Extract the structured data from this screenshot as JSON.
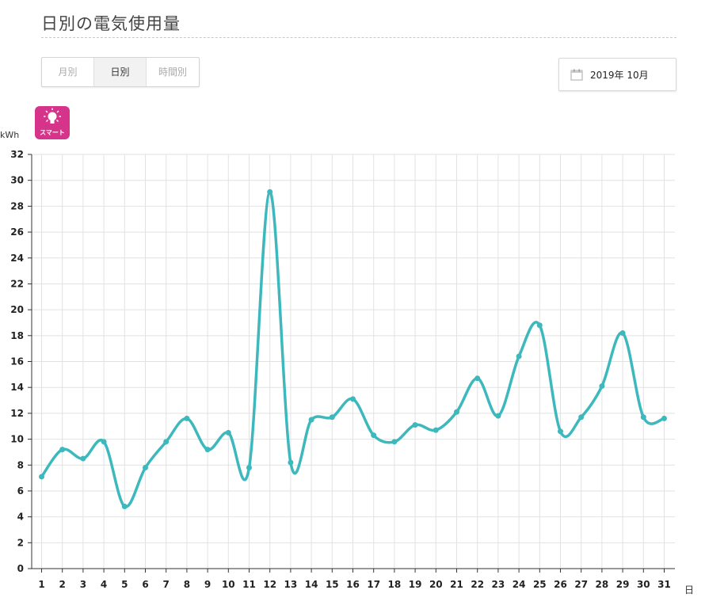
{
  "page": {
    "title": "日別の電気使用量"
  },
  "tabs": [
    {
      "label": "月別",
      "active": false
    },
    {
      "label": "日別",
      "active": true
    },
    {
      "label": "時間別",
      "active": false
    }
  ],
  "date_picker": {
    "value": "2019年 10月",
    "icon": "calendar-icon"
  },
  "badge": {
    "label": "スマート",
    "icon": "lightbulb-icon",
    "color": "#d6338a"
  },
  "colors": {
    "line": "#3db8bd",
    "grid": "#e2e2e2",
    "axis": "#333333"
  },
  "chart_data": {
    "type": "line",
    "ylabel": "kWh",
    "xlabel": "日",
    "ylim": [
      0,
      32
    ],
    "yticks": [
      0,
      2,
      4,
      6,
      8,
      10,
      12,
      14,
      16,
      18,
      20,
      22,
      24,
      26,
      28,
      30,
      32
    ],
    "grid": true,
    "categories": [
      "1",
      "2",
      "3",
      "4",
      "5",
      "6",
      "7",
      "8",
      "9",
      "10",
      "11",
      "12",
      "13",
      "14",
      "15",
      "16",
      "17",
      "18",
      "19",
      "20",
      "21",
      "22",
      "23",
      "24",
      "25",
      "26",
      "27",
      "28",
      "29",
      "30",
      "31"
    ],
    "values": [
      7.1,
      9.2,
      8.5,
      9.8,
      4.8,
      7.8,
      9.8,
      11.6,
      9.2,
      10.5,
      7.8,
      29.1,
      8.2,
      11.5,
      11.7,
      13.1,
      10.3,
      9.8,
      11.1,
      10.7,
      12.1,
      14.7,
      11.8,
      16.4,
      18.8,
      10.6,
      11.7,
      14.1,
      18.2,
      11.7,
      11.6
    ]
  }
}
